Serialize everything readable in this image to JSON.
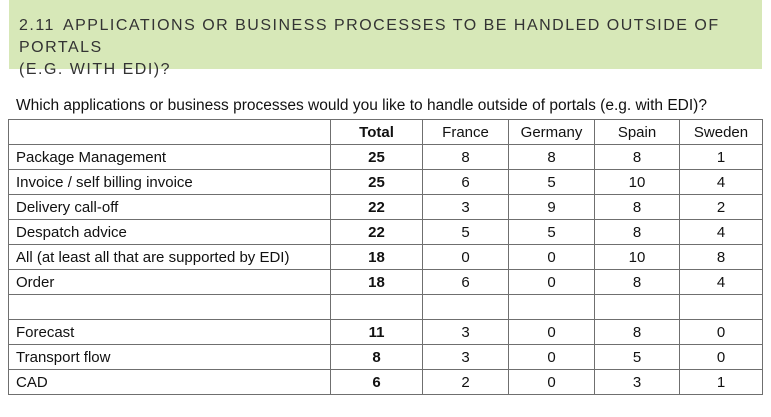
{
  "section": {
    "number": "2.11",
    "title_line1": "APPLICATIONS OR BUSINESS PROCESSES TO BE HANDLED OUTSIDE OF PORTALS",
    "title_line2": "(E.G. WITH EDI)?",
    "background_color": "#d7e8b8"
  },
  "question": "Which applications or business processes would you like to handle outside of portals (e.g. with EDI)?",
  "table": {
    "columns": [
      "",
      "Total",
      "France",
      "Germany",
      "Spain",
      "Sweden"
    ],
    "rows": [
      {
        "label": "Package Management",
        "total": "25",
        "france": "8",
        "germany": "8",
        "spain": "8",
        "sweden": "1"
      },
      {
        "label": "Invoice / self billing invoice",
        "total": "25",
        "france": "6",
        "germany": "5",
        "spain": "10",
        "sweden": "4"
      },
      {
        "label": "Delivery call-off",
        "total": "22",
        "france": "3",
        "germany": "9",
        "spain": "8",
        "sweden": "2"
      },
      {
        "label": "Despatch advice",
        "total": "22",
        "france": "5",
        "germany": "5",
        "spain": "8",
        "sweden": "4"
      },
      {
        "label": "All (at least all that are supported by EDI)",
        "total": "18",
        "france": "0",
        "germany": "0",
        "spain": "10",
        "sweden": "8"
      },
      {
        "label": "Order",
        "total": "18",
        "france": "6",
        "germany": "0",
        "spain": "8",
        "sweden": "4"
      },
      {
        "label": "",
        "total": "",
        "france": "",
        "germany": "",
        "spain": "",
        "sweden": ""
      },
      {
        "label": "Forecast",
        "total": "11",
        "france": "3",
        "germany": "0",
        "spain": "8",
        "sweden": "0"
      },
      {
        "label": "Transport flow",
        "total": "8",
        "france": "3",
        "germany": "0",
        "spain": "5",
        "sweden": "0"
      },
      {
        "label": "CAD",
        "total": "6",
        "france": "2",
        "germany": "0",
        "spain": "3",
        "sweden": "1"
      }
    ]
  }
}
